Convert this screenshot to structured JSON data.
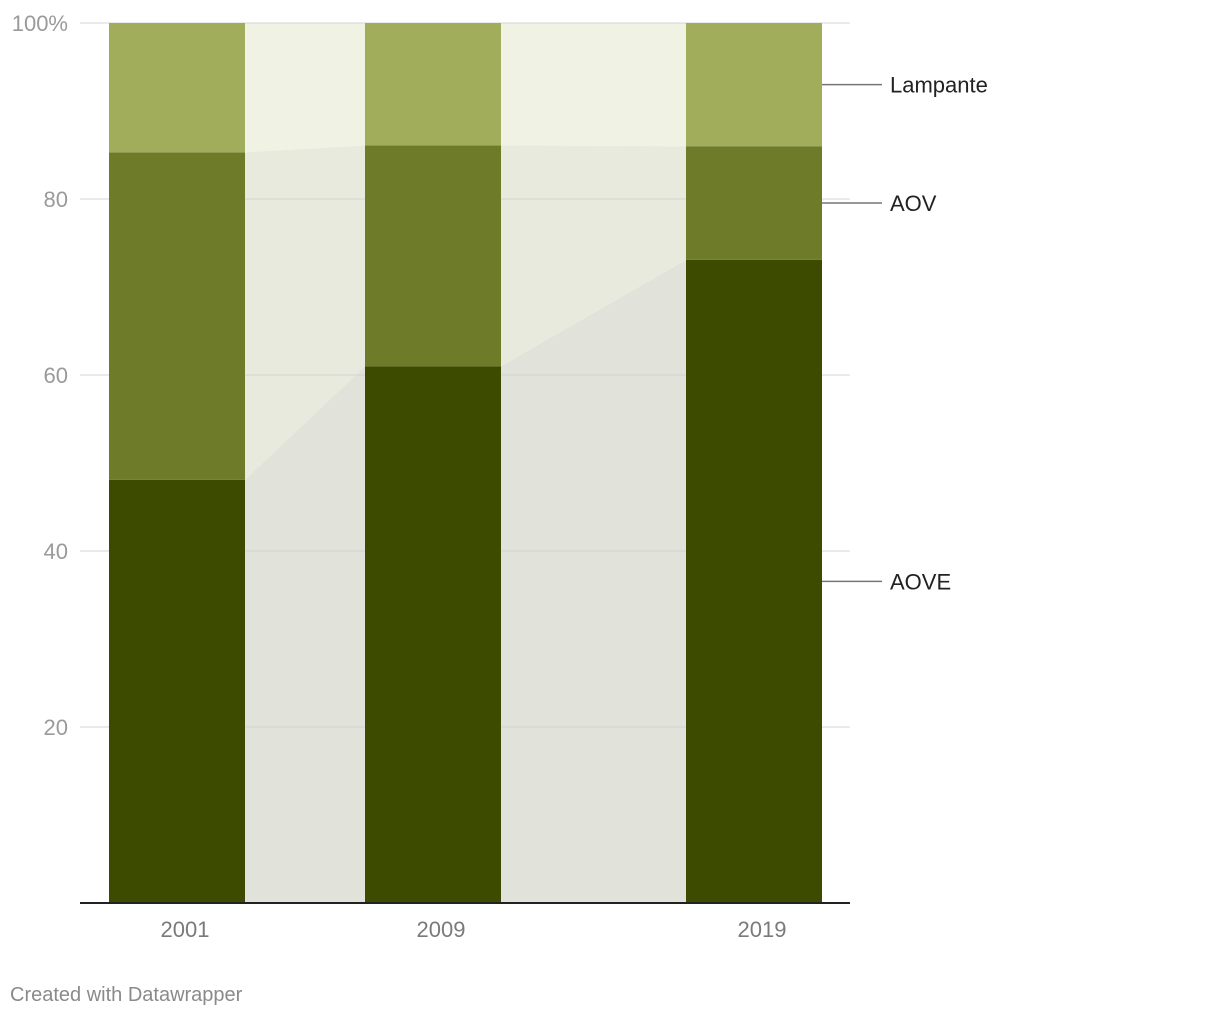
{
  "chart_data": {
    "type": "bar",
    "stacked": true,
    "normalized_percent": true,
    "categories": [
      "2001",
      "2009",
      "2019"
    ],
    "series": [
      {
        "name": "AOVE",
        "values": [
          48.1,
          61.0,
          73.1
        ],
        "color": "#3d4b00"
      },
      {
        "name": "AOV",
        "values": [
          37.2,
          25.1,
          12.9
        ],
        "color": "#6e7b29"
      },
      {
        "name": "Lampante",
        "values": [
          14.7,
          13.9,
          14.0
        ],
        "color": "#a1ad5a"
      }
    ],
    "ylim": [
      0,
      100
    ],
    "yticks": [
      {
        "value": 100,
        "label": "100%"
      },
      {
        "value": 80,
        "label": "80"
      },
      {
        "value": 60,
        "label": "60"
      },
      {
        "value": 40,
        "label": "40"
      },
      {
        "value": 20,
        "label": "20"
      }
    ],
    "grid": true,
    "connector_bands": true,
    "legend": "direct labels at right"
  },
  "footer": {
    "credit": "Created with Datawrapper"
  }
}
